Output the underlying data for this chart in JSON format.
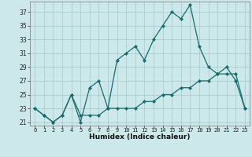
{
  "title": "",
  "xlabel": "Humidex (Indice chaleur)",
  "ylabel": "",
  "bg_color": "#cce8ea",
  "grid_color": "#aacdd0",
  "line_color": "#1a6b6b",
  "x_values": [
    0,
    1,
    2,
    3,
    4,
    5,
    6,
    7,
    8,
    9,
    10,
    11,
    12,
    13,
    14,
    15,
    16,
    17,
    18,
    19,
    20,
    21,
    22,
    23
  ],
  "line1_y": [
    23,
    22,
    21,
    22,
    25,
    21,
    26,
    27,
    23,
    30,
    31,
    32,
    30,
    33,
    35,
    37,
    36,
    38,
    32,
    29,
    28,
    29,
    27,
    23
  ],
  "line2_y": [
    23,
    22,
    21,
    22,
    25,
    22,
    22,
    22,
    23,
    23,
    23,
    23,
    24,
    24,
    25,
    25,
    26,
    26,
    27,
    27,
    28,
    28,
    28,
    23
  ],
  "yticks": [
    21,
    23,
    25,
    27,
    29,
    31,
    33,
    35,
    37
  ],
  "ylim": [
    20.5,
    38.5
  ],
  "xlim": [
    -0.5,
    23.5
  ],
  "xtick_labels": [
    "0",
    "1",
    "2",
    "3",
    "4",
    "5",
    "6",
    "7",
    "8",
    "9",
    "10",
    "11",
    "12",
    "13",
    "14",
    "15",
    "16",
    "17",
    "18",
    "19",
    "20",
    "21",
    "22",
    "23"
  ]
}
